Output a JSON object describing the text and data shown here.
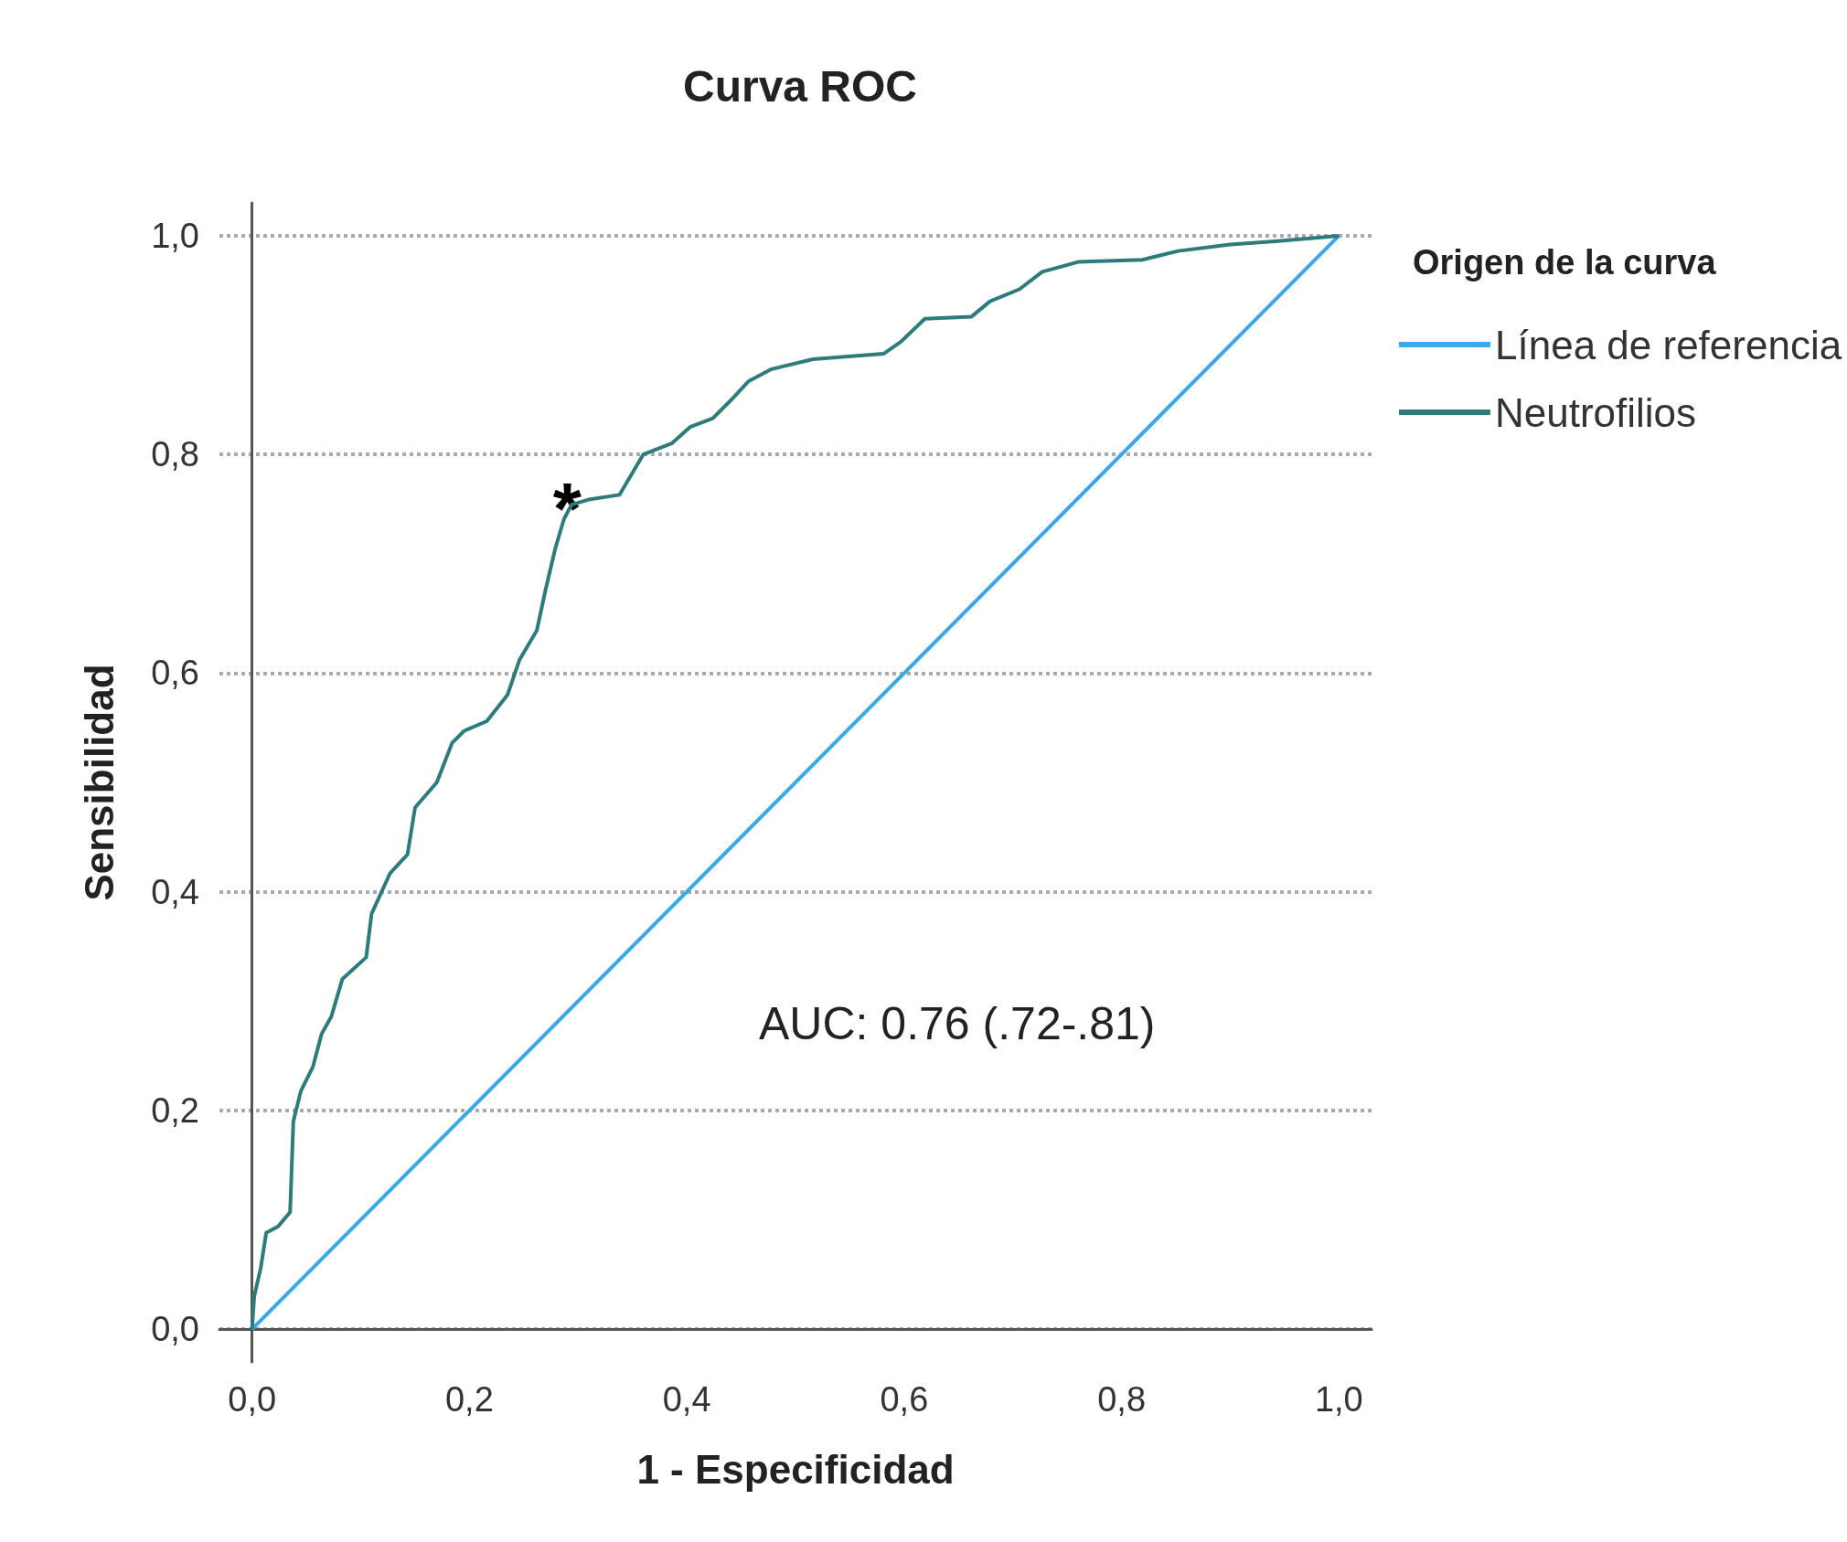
{
  "chart_data": {
    "type": "line",
    "title": "Curva ROC",
    "xlabel": "1 - Especificidad",
    "ylabel": "Sensibilidad",
    "legend_title": "Origen de la curva",
    "xlim": [
      -0.03,
      1.03
    ],
    "ylim": [
      -0.03,
      1.03
    ],
    "xticks": [
      {
        "value": 0,
        "label": "0,0"
      },
      {
        "value": 0.2,
        "label": "0,2"
      },
      {
        "value": 0.4,
        "label": "0,4"
      },
      {
        "value": 0.6,
        "label": "0,6"
      },
      {
        "value": 0.8,
        "label": "0,8"
      },
      {
        "value": 1,
        "label": "1,0"
      }
    ],
    "yticks": [
      {
        "value": 0,
        "label": "0,0"
      },
      {
        "value": 0.2,
        "label": "0,2"
      },
      {
        "value": 0.4,
        "label": "0,4"
      },
      {
        "value": 0.6,
        "label": "0,6"
      },
      {
        "value": 0.8,
        "label": "0,8"
      },
      {
        "value": 1,
        "label": "1,0"
      }
    ],
    "grid": "y",
    "legend": "right",
    "marker": "none",
    "line_style": "solid",
    "series": [
      {
        "name": "Línea de referencia",
        "color": "#3aa7e8",
        "x": [
          0,
          1
        ],
        "values": [
          0,
          1
        ]
      },
      {
        "name": "Neutrofilios",
        "color": "#2e7b7b",
        "x": [
          0,
          0.002,
          0.008,
          0.013,
          0.024,
          0.035,
          0.038,
          0.045,
          0.056,
          0.064,
          0.073,
          0.083,
          0.105,
          0.11,
          0.127,
          0.143,
          0.15,
          0.17,
          0.184,
          0.195,
          0.216,
          0.235,
          0.246,
          0.262,
          0.27,
          0.279,
          0.287,
          0.294,
          0.311,
          0.338,
          0.36,
          0.386,
          0.403,
          0.424,
          0.44,
          0.457,
          0.478,
          0.516,
          0.581,
          0.597,
          0.619,
          0.662,
          0.679,
          0.706,
          0.727,
          0.76,
          0.819,
          0.852,
          0.9,
          0.944,
          1
        ],
        "values": [
          0,
          0.03,
          0.056,
          0.088,
          0.094,
          0.107,
          0.19,
          0.218,
          0.24,
          0.27,
          0.286,
          0.32,
          0.34,
          0.38,
          0.417,
          0.434,
          0.477,
          0.5,
          0.536,
          0.547,
          0.556,
          0.58,
          0.612,
          0.639,
          0.676,
          0.714,
          0.741,
          0.754,
          0.759,
          0.763,
          0.8,
          0.81,
          0.825,
          0.833,
          0.849,
          0.867,
          0.878,
          0.887,
          0.892,
          0.903,
          0.924,
          0.926,
          0.94,
          0.951,
          0.967,
          0.976,
          0.978,
          0.986,
          0.992,
          0.995,
          1
        ]
      }
    ],
    "annotations": [
      {
        "text": "*",
        "x": 0.29,
        "y": 0.75
      },
      "AUC: 0.76 (.72-.81)"
    ]
  }
}
